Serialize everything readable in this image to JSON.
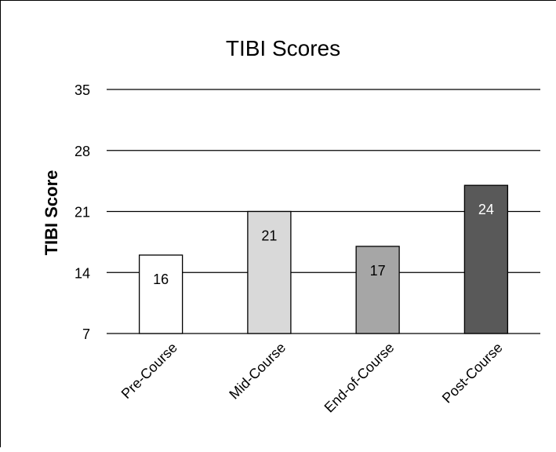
{
  "chart_data": {
    "type": "bar",
    "title": "TIBI Scores",
    "ylabel": "TIBI Score",
    "xlabel": "",
    "categories": [
      "Pre-Course",
      "Mid-Course",
      "End-of-Course",
      "Post-Course"
    ],
    "values": [
      16,
      21,
      17,
      24
    ],
    "data_labels": [
      "16",
      "21",
      "17",
      "24"
    ],
    "ylim": [
      7,
      35
    ],
    "yticks": [
      7,
      14,
      21,
      28,
      35
    ],
    "ytick_labels": [
      "7",
      "14",
      "21",
      "28",
      "35"
    ],
    "grid": "horizontal",
    "legend": "none",
    "bar_colors": [
      "#ffffff",
      "#d9d9d9",
      "#a6a6a6",
      "#595959"
    ],
    "label_colors": [
      "#000000",
      "#000000",
      "#000000",
      "#ffffff"
    ],
    "bar_outline": "#000000"
  }
}
